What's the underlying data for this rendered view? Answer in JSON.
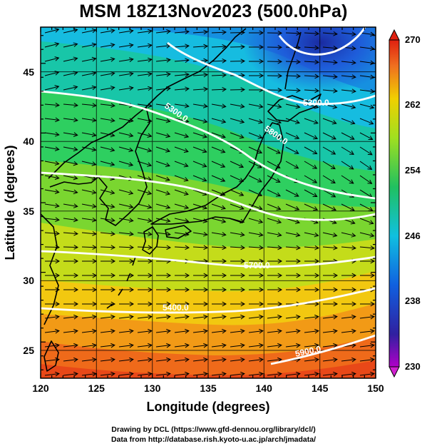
{
  "title": "MSM 18Z13Nov2023 (500.0hPa)",
  "axes": {
    "xlabel": "Longitude (degrees)",
    "ylabel": "Latitude  (degrees)",
    "xlim": [
      120,
      150
    ],
    "ylim": [
      22.4,
      47.6
    ],
    "xticks": [
      "120",
      "125",
      "130",
      "135",
      "140",
      "145",
      "150"
    ],
    "yticks": [
      "25",
      "30",
      "35",
      "40",
      "45"
    ]
  },
  "colorbar": {
    "min": 230,
    "max": 270,
    "labels": [
      "270",
      "262",
      "254",
      "246",
      "238",
      "230"
    ]
  },
  "contours": [
    {
      "label": "5300.0"
    },
    {
      "label": "5300.0"
    },
    {
      "label": "5400.0"
    },
    {
      "label": "5700.0"
    },
    {
      "label": "5800.0"
    },
    {
      "label": "5900.0"
    }
  ],
  "credits": {
    "line1": "Drawing by DCL (https://www.gfd-dennou.org/library/dcl/)",
    "line2": "Data from http://database.rish.kyoto-u.ac.jp/arch/jmadata/"
  }
}
